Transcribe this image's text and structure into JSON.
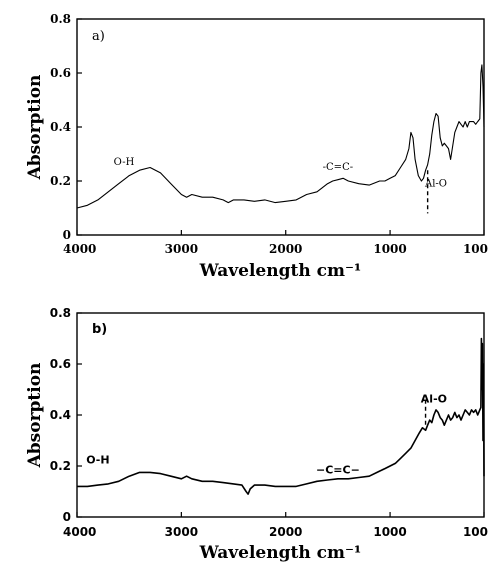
{
  "chart_data": [
    {
      "type": "line",
      "panel_label": "a)",
      "xlabel": "Wavelength cm⁻¹",
      "ylabel": "Absorption",
      "xlim": [
        4000,
        100
      ],
      "ylim": [
        0,
        0.8
      ],
      "x_ticks": [
        "4000",
        "3000",
        "2000",
        "1000",
        "100"
      ],
      "y_ticks": [
        "0",
        "0.2",
        "0.4",
        "0.6",
        "0.8"
      ],
      "annotations": [
        {
          "text": "O-H",
          "x": 3550,
          "y": 0.26
        },
        {
          "text": "-C=C-",
          "x": 1500,
          "y": 0.24
        },
        {
          "text": "Al-O",
          "x": 560,
          "y": 0.18
        }
      ],
      "marker_line_x": 640,
      "series": [
        {
          "x": [
            4000,
            3900,
            3800,
            3700,
            3600,
            3500,
            3400,
            3300,
            3200,
            3100,
            3000,
            2950,
            2900,
            2800,
            2700,
            2600,
            2550,
            2500,
            2400,
            2300,
            2200,
            2100,
            2000,
            1900,
            1800,
            1700,
            1650,
            1600,
            1550,
            1500,
            1450,
            1400,
            1300,
            1200,
            1100,
            1050,
            1000,
            950,
            900,
            850,
            820,
            800,
            780,
            760,
            730,
            700,
            680,
            660,
            640,
            620,
            600,
            580,
            560,
            540,
            520,
            500,
            480,
            460,
            440,
            420,
            400,
            380,
            360,
            340,
            320,
            300,
            280,
            260,
            240,
            220,
            200,
            180,
            160,
            140,
            130,
            120,
            110,
            100
          ],
          "y": [
            0.1,
            0.11,
            0.13,
            0.16,
            0.19,
            0.22,
            0.24,
            0.25,
            0.23,
            0.19,
            0.15,
            0.14,
            0.15,
            0.14,
            0.14,
            0.13,
            0.12,
            0.13,
            0.13,
            0.125,
            0.13,
            0.12,
            0.125,
            0.13,
            0.15,
            0.16,
            0.175,
            0.19,
            0.2,
            0.205,
            0.21,
            0.2,
            0.19,
            0.185,
            0.2,
            0.2,
            0.21,
            0.22,
            0.25,
            0.28,
            0.32,
            0.38,
            0.36,
            0.28,
            0.22,
            0.2,
            0.21,
            0.24,
            0.26,
            0.3,
            0.37,
            0.42,
            0.45,
            0.44,
            0.36,
            0.33,
            0.34,
            0.33,
            0.32,
            0.28,
            0.33,
            0.38,
            0.4,
            0.42,
            0.41,
            0.4,
            0.42,
            0.4,
            0.42,
            0.42,
            0.42,
            0.41,
            0.42,
            0.43,
            0.6,
            0.63,
            0.55,
            0.4
          ]
        }
      ]
    },
    {
      "type": "line",
      "panel_label": "b)",
      "xlabel": "Wavelength cm⁻¹",
      "ylabel": "Absorption",
      "xlim": [
        4000,
        100
      ],
      "ylim": [
        0,
        0.8
      ],
      "x_ticks": [
        "4000",
        "3000",
        "2000",
        "1000",
        "100"
      ],
      "y_ticks": [
        "0",
        "0.2",
        "0.4",
        "0.6",
        "0.8"
      ],
      "annotations": [
        {
          "text": "O-H",
          "x": 3800,
          "y": 0.21
        },
        {
          "text": "−C=C−",
          "x": 1500,
          "y": 0.17
        },
        {
          "text": "Al-O",
          "x": 580,
          "y": 0.45
        }
      ],
      "marker_line_x": 660,
      "series": [
        {
          "x": [
            4000,
            3900,
            3800,
            3700,
            3600,
            3500,
            3400,
            3300,
            3200,
            3100,
            3000,
            2950,
            2900,
            2800,
            2700,
            2600,
            2500,
            2420,
            2380,
            2360,
            2340,
            2300,
            2200,
            2100,
            2000,
            1900,
            1800,
            1700,
            1600,
            1500,
            1400,
            1300,
            1200,
            1100,
            1050,
            1000,
            950,
            900,
            850,
            800,
            760,
            720,
            690,
            660,
            640,
            620,
            600,
            580,
            560,
            540,
            520,
            500,
            480,
            460,
            440,
            420,
            400,
            380,
            360,
            340,
            320,
            300,
            280,
            260,
            240,
            220,
            200,
            180,
            160,
            140,
            130,
            125,
            120,
            115,
            110,
            105,
            100
          ],
          "y": [
            0.12,
            0.12,
            0.125,
            0.13,
            0.14,
            0.16,
            0.175,
            0.175,
            0.17,
            0.16,
            0.15,
            0.16,
            0.15,
            0.14,
            0.14,
            0.135,
            0.13,
            0.125,
            0.1,
            0.09,
            0.11,
            0.125,
            0.125,
            0.12,
            0.12,
            0.12,
            0.13,
            0.14,
            0.145,
            0.15,
            0.15,
            0.155,
            0.16,
            0.18,
            0.19,
            0.2,
            0.21,
            0.23,
            0.25,
            0.27,
            0.3,
            0.33,
            0.35,
            0.34,
            0.36,
            0.38,
            0.37,
            0.4,
            0.42,
            0.41,
            0.39,
            0.38,
            0.36,
            0.38,
            0.4,
            0.38,
            0.39,
            0.41,
            0.39,
            0.4,
            0.38,
            0.4,
            0.42,
            0.41,
            0.4,
            0.42,
            0.41,
            0.42,
            0.4,
            0.42,
            0.43,
            0.7,
            0.5,
            0.68,
            0.3,
            0.6,
            0.16
          ]
        }
      ]
    }
  ]
}
